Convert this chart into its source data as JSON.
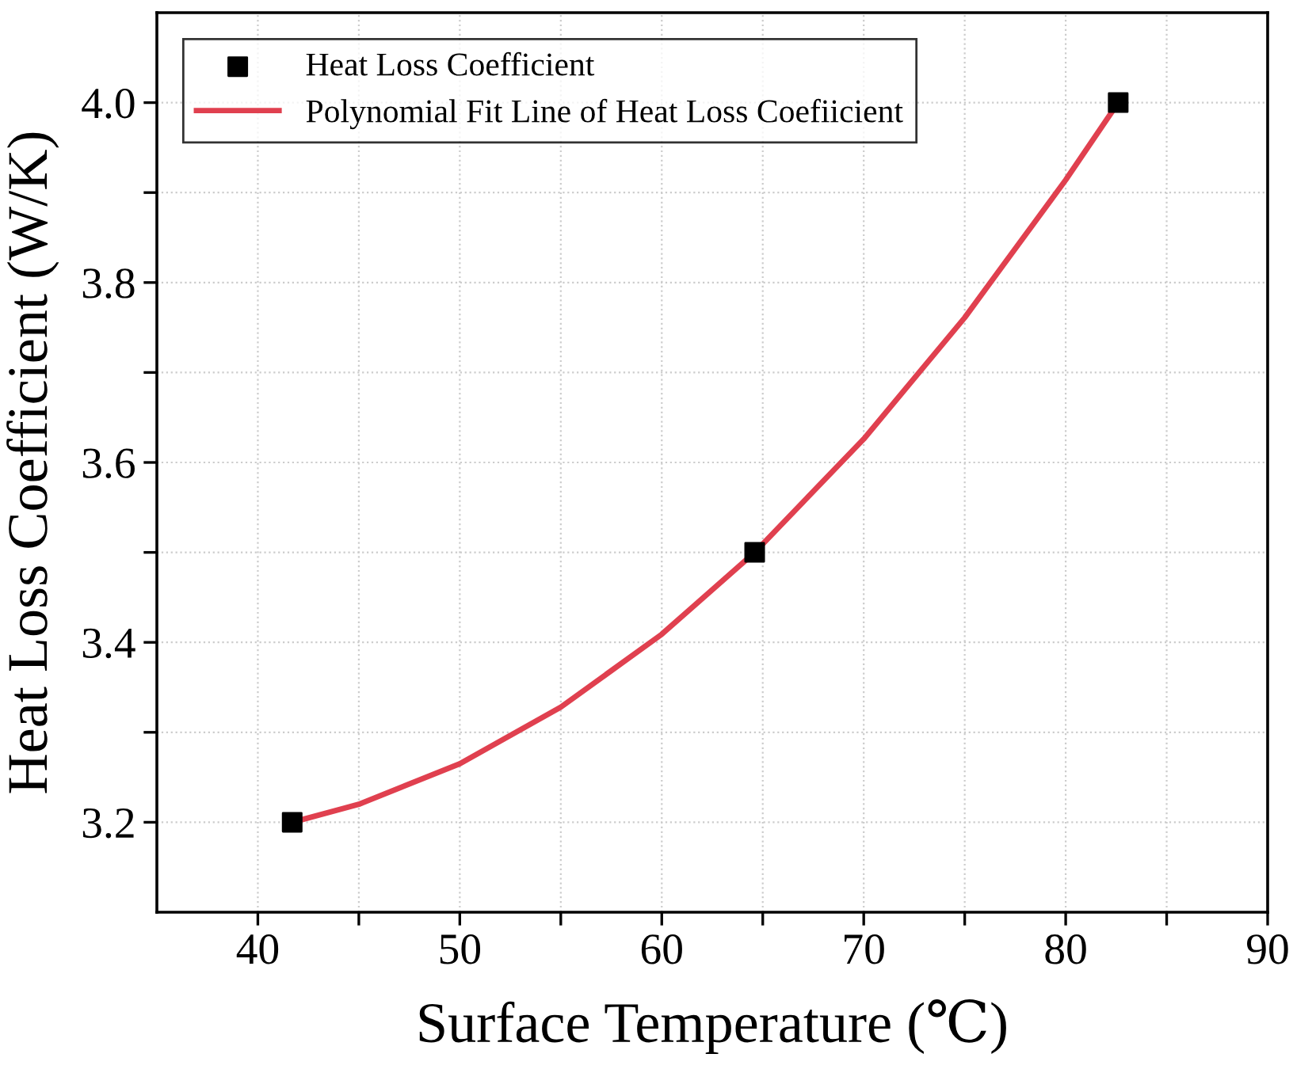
{
  "chart_data": {
    "type": "scatter",
    "xlabel": "Surface Temperature (℃)",
    "ylabel": "Heat Loss Coefficient (W/K)",
    "xlim": [
      35,
      90
    ],
    "ylim": [
      3.1,
      4.1
    ],
    "xticks": [
      40,
      {
        "value": 45,
        "label": null
      },
      50,
      {
        "value": 55,
        "label": null
      },
      60,
      {
        "value": 65,
        "label": null
      },
      70,
      {
        "value": 75,
        "label": null
      },
      80,
      {
        "value": 85,
        "label": null
      },
      90
    ],
    "yticks": [
      3.2,
      {
        "value": 3.3,
        "label": null
      },
      3.4,
      {
        "value": 3.5,
        "label": null
      },
      3.6,
      {
        "value": 3.7,
        "label": null
      },
      3.8,
      {
        "value": 3.9,
        "label": null
      },
      "4.0"
    ],
    "grid": true,
    "legend": "top left",
    "series": [
      {
        "name": "Heat Loss Coefficient",
        "marker": "square",
        "color": "#000000",
        "x": [
          41.7,
          64.6,
          82.6
        ],
        "values": [
          3.2,
          3.5,
          4.0
        ]
      },
      {
        "name": "Polynomial Fit Line of Heat Loss Coefiicient",
        "type": "line",
        "line_style": "solid",
        "marker": "none",
        "color": "#e0404f",
        "x": [
          41.7,
          45,
          50,
          55,
          60,
          64.6,
          70,
          75,
          80,
          82.6
        ],
        "values": [
          3.2,
          3.22,
          3.265,
          3.328,
          3.409,
          3.5,
          3.626,
          3.761,
          3.914,
          4.0
        ]
      }
    ]
  }
}
